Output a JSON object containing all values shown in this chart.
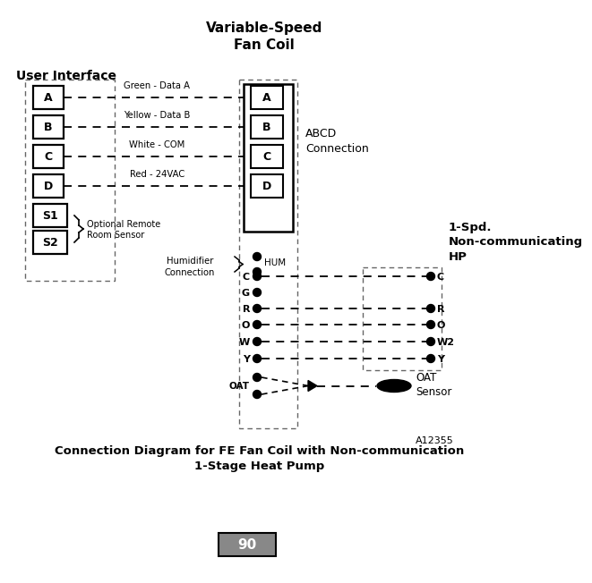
{
  "title_fancoil": "Variable-Speed\nFan Coil",
  "title_ui": "User Interface",
  "title_hp": "1-Spd.\nNon-communicating\nHP",
  "abcd_connection": "ABCD\nConnection",
  "caption_line1": "Connection Diagram for FE Fan Coil with Non-communication",
  "caption_line2": "1-Stage Heat Pump",
  "part_number": "A12355",
  "page_number": "90",
  "bg_color": "#ffffff",
  "ui_letters": [
    "A",
    "B",
    "C",
    "D",
    "S1",
    "S2"
  ],
  "fc_letters": [
    "A",
    "B",
    "C",
    "D"
  ],
  "wire_labels": [
    "Green - Data A",
    "Yellow - Data B",
    "White - COM",
    "Red - 24VAC"
  ],
  "optional_label": "Optional Remote\nRoom Sensor",
  "humidifier_label": "Humidifier\nConnection",
  "oat_label": "OAT\nSensor",
  "fc_term_labels": [
    "C",
    "G",
    "R",
    "O",
    "W",
    "Y"
  ],
  "hp_term_labels": [
    "C",
    "R",
    "O",
    "W2",
    "Y"
  ]
}
